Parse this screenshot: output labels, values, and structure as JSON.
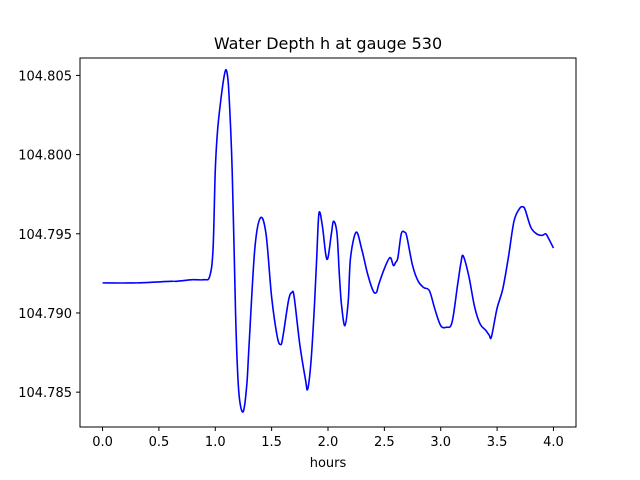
{
  "chart_data": {
    "type": "line",
    "title": "Water Depth h at gauge 530",
    "xlabel": "hours",
    "ylabel": "",
    "xlim": [
      -0.2,
      4.2
    ],
    "ylim": [
      104.7828,
      104.8061
    ],
    "xticks": [
      0.0,
      0.5,
      1.0,
      1.5,
      2.0,
      2.5,
      3.0,
      3.5,
      4.0
    ],
    "xtick_labels": [
      "0.0",
      "0.5",
      "1.0",
      "1.5",
      "2.0",
      "2.5",
      "3.0",
      "3.5",
      "4.0"
    ],
    "yticks": [
      104.785,
      104.79,
      104.795,
      104.8,
      104.805
    ],
    "ytick_labels": [
      "104.785",
      "104.790",
      "104.795",
      "104.800",
      "104.805"
    ],
    "grid": false,
    "series": [
      {
        "color": "#0000ff",
        "x": [
          0.0,
          0.3,
          0.6,
          0.65,
          0.8,
          0.9,
          0.95,
          0.98,
          1.0,
          1.02,
          1.05,
          1.08,
          1.1,
          1.12,
          1.15,
          1.18,
          1.2,
          1.22,
          1.25,
          1.28,
          1.3,
          1.35,
          1.4,
          1.45,
          1.5,
          1.55,
          1.58,
          1.6,
          1.65,
          1.68,
          1.7,
          1.75,
          1.8,
          1.82,
          1.85,
          1.88,
          1.9,
          1.92,
          1.95,
          1.98,
          2.0,
          2.03,
          2.05,
          2.08,
          2.1,
          2.12,
          2.15,
          2.18,
          2.2,
          2.25,
          2.3,
          2.35,
          2.4,
          2.43,
          2.45,
          2.5,
          2.55,
          2.58,
          2.6,
          2.62,
          2.65,
          2.68,
          2.7,
          2.75,
          2.8,
          2.85,
          2.9,
          2.95,
          3.0,
          3.05,
          3.1,
          3.15,
          3.18,
          3.2,
          3.25,
          3.3,
          3.35,
          3.4,
          3.43,
          3.45,
          3.5,
          3.55,
          3.6,
          3.65,
          3.7,
          3.73,
          3.75,
          3.8,
          3.85,
          3.9,
          3.93,
          3.95,
          4.0
        ],
        "y": [
          104.7919,
          104.7919,
          104.792,
          104.792,
          104.7921,
          104.7921,
          104.7923,
          104.794,
          104.799,
          104.8015,
          104.8035,
          104.805,
          104.8053,
          104.804,
          104.799,
          104.79,
          104.786,
          104.7843,
          104.7838,
          104.7855,
          104.788,
          104.794,
          104.796,
          104.795,
          104.791,
          104.7885,
          104.788,
          104.7885,
          104.7908,
          104.7913,
          104.791,
          104.788,
          104.7858,
          104.7852,
          104.787,
          104.7905,
          104.7935,
          104.7963,
          104.7955,
          104.7937,
          104.7935,
          104.795,
          104.7958,
          104.795,
          104.7925,
          104.7905,
          104.7892,
          104.7908,
          104.7935,
          104.7951,
          104.794,
          104.7925,
          104.7914,
          104.7913,
          104.7918,
          104.7928,
          104.7935,
          104.793,
          104.7932,
          104.7935,
          104.795,
          104.7951,
          104.7948,
          104.793,
          104.792,
          104.7916,
          104.7914,
          104.7902,
          104.7892,
          104.7891,
          104.7894,
          104.7918,
          104.7932,
          104.7936,
          104.7923,
          104.7904,
          104.7893,
          104.7889,
          104.7886,
          104.7885,
          104.7903,
          104.7915,
          104.7935,
          104.7958,
          104.7966,
          104.7967,
          104.7965,
          104.7954,
          104.795,
          104.7949,
          104.795,
          104.7948,
          104.7941
        ]
      }
    ]
  }
}
